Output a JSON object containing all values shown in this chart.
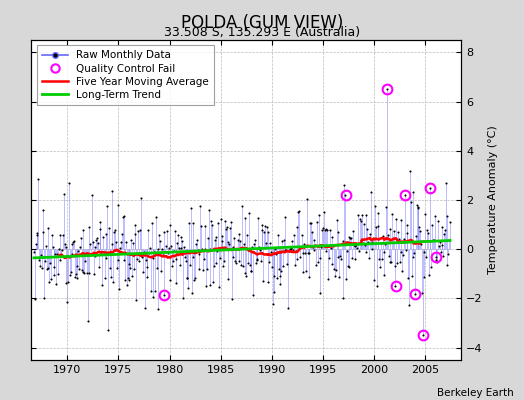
{
  "title": "POLDA (GUM VIEW)",
  "subtitle": "33.508 S, 135.293 E (Australia)",
  "ylabel": "Temperature Anomaly (°C)",
  "credit": "Berkeley Earth",
  "xlim": [
    1966.5,
    2008.5
  ],
  "ylim": [
    -4.5,
    8.5
  ],
  "yticks": [
    -4,
    -2,
    0,
    2,
    4,
    6,
    8
  ],
  "xticks": [
    1970,
    1975,
    1980,
    1985,
    1990,
    1995,
    2000,
    2005
  ],
  "bg_color": "#d8d8d8",
  "plot_bg_color": "#ffffff",
  "raw_stem_color": "#6666ff",
  "raw_dot_color": "#000000",
  "ma_color": "#ff0000",
  "trend_color": "#00cc00",
  "qc_color": "#ff00ff",
  "seed": 17,
  "start_year": 1966.75,
  "end_year": 2007.5
}
